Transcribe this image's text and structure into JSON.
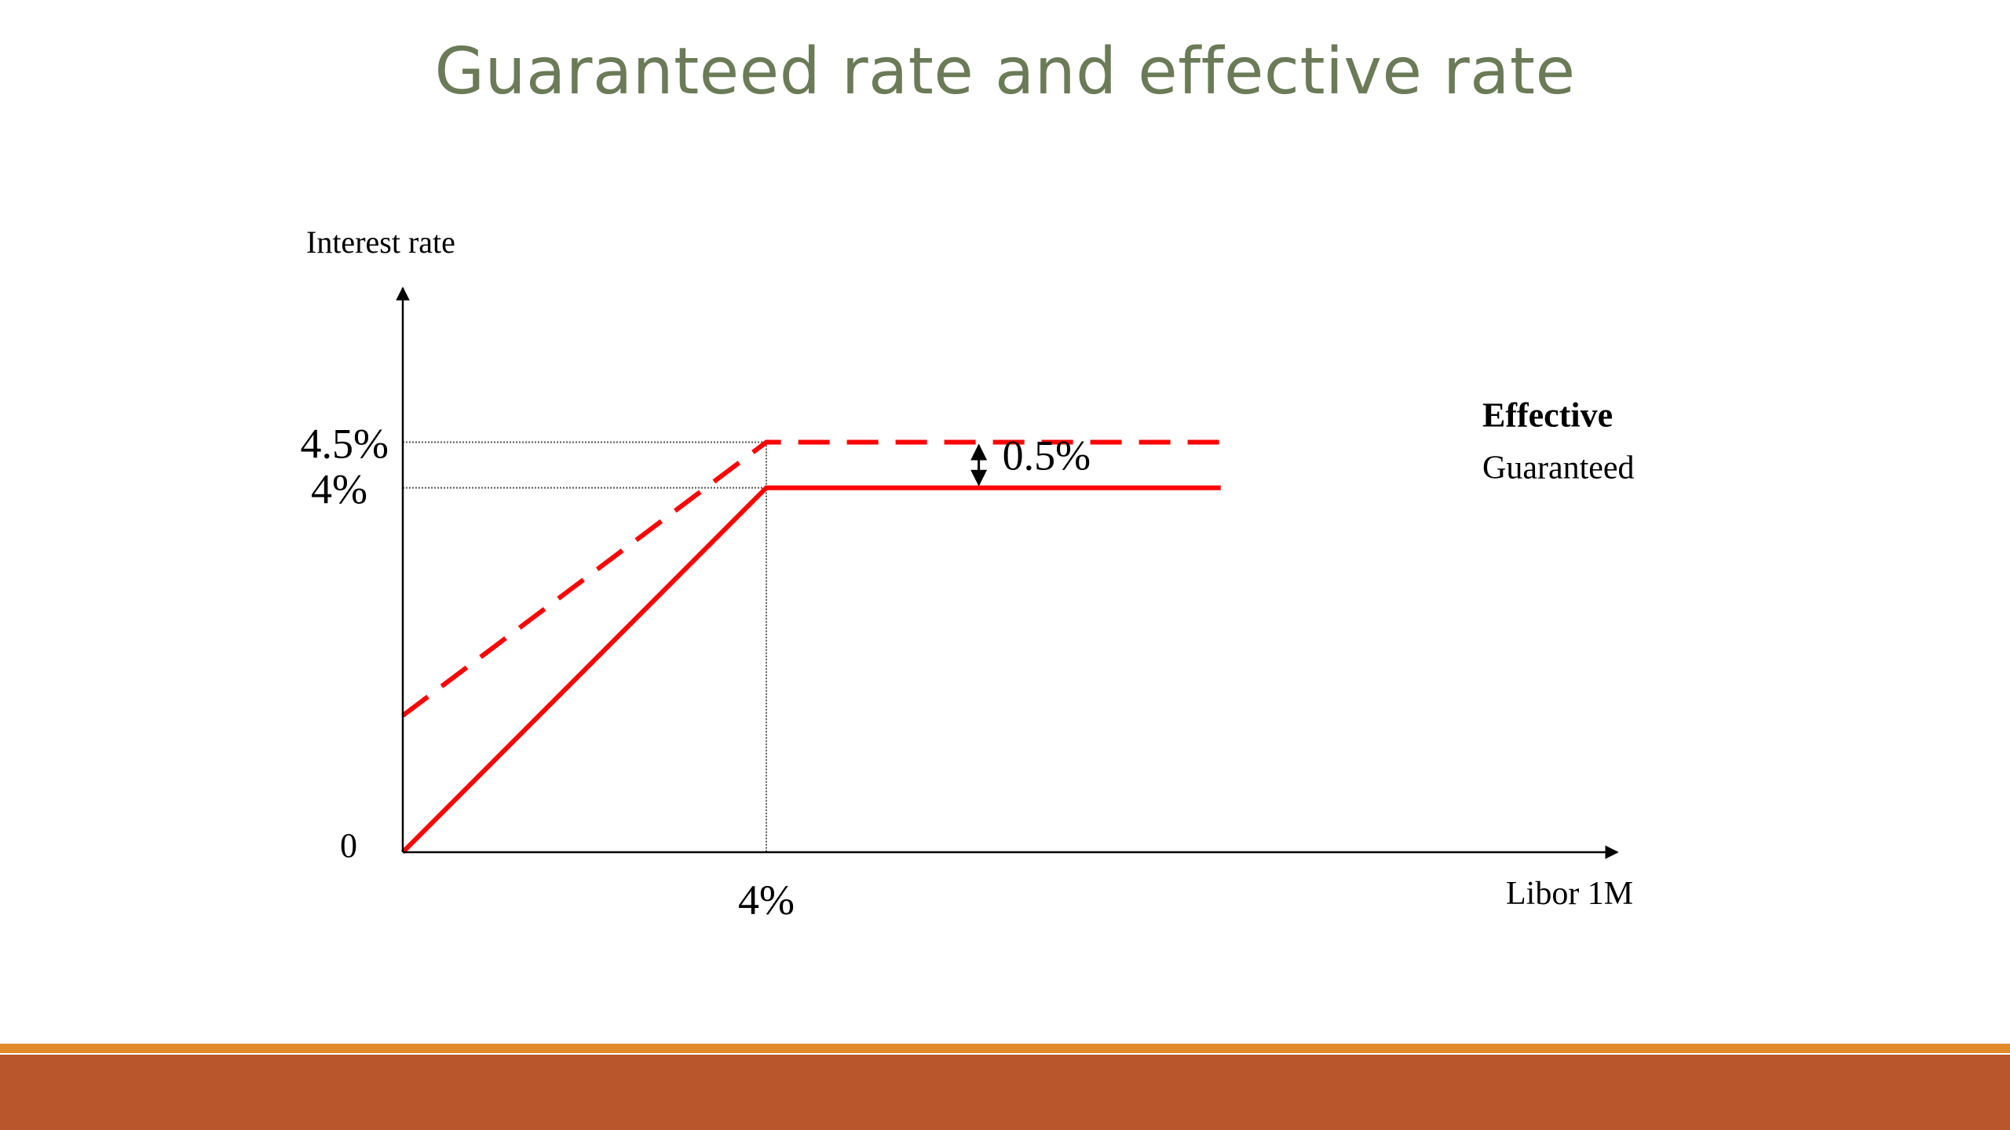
{
  "slide": {
    "title": "Guaranteed rate and effective rate"
  },
  "chart_data": {
    "type": "line",
    "xlabel": "Libor 1M",
    "ylabel": "Interest rate",
    "x_tick_labels": [
      "4%"
    ],
    "y_tick_labels": [
      "0",
      "4%",
      "4.5%"
    ],
    "x": [
      0,
      4,
      9
    ],
    "series": [
      {
        "name": "Effective",
        "values": [
          1.5,
          4.5,
          4.5
        ],
        "style": "dashed",
        "color": "#ff0000"
      },
      {
        "name": "Guaranteed",
        "values": [
          0,
          4,
          4
        ],
        "style": "solid",
        "color": "#ff0000"
      }
    ],
    "annotation": {
      "label": "0.5%",
      "x": 5.5,
      "from": 4,
      "to": 4.5
    },
    "xlim": [
      0,
      10
    ],
    "ylim": [
      0,
      5.25
    ],
    "grid": false
  },
  "colors": {
    "title": "#6b7a57",
    "series": "#ff0000",
    "axis": "#000000",
    "footer_stripe": "#e08a2a",
    "footer_bar": "#b9562b"
  }
}
